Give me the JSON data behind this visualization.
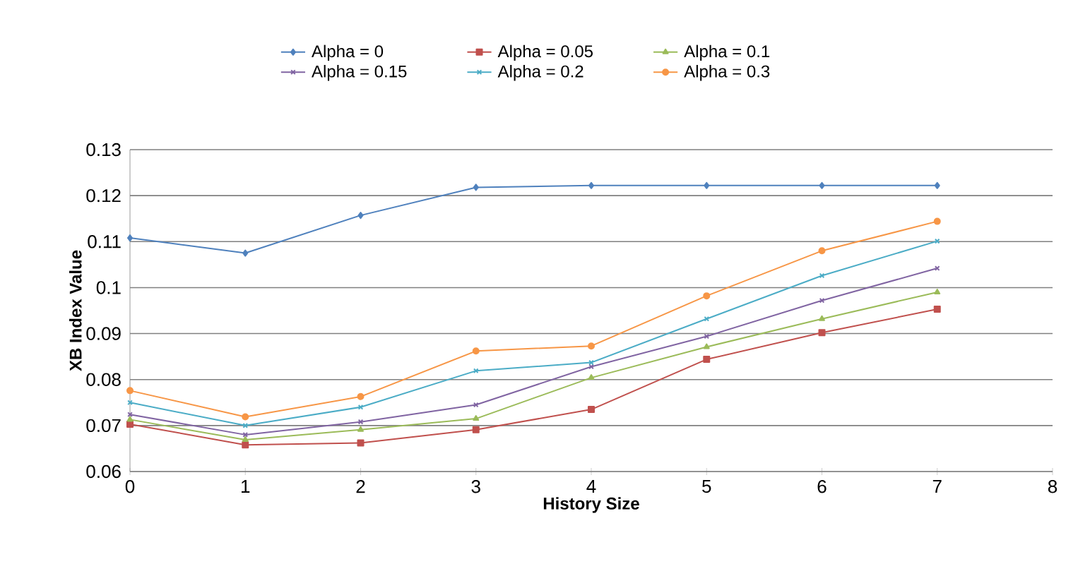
{
  "chart_data": {
    "type": "line",
    "xlabel": "History Size",
    "ylabel": "XB Index Value",
    "x": [
      0,
      1,
      2,
      3,
      4,
      5,
      6,
      7
    ],
    "xlim": [
      0,
      8
    ],
    "xticks": [
      0,
      1,
      2,
      3,
      4,
      5,
      6,
      7,
      8
    ],
    "ylim": [
      0.06,
      0.13
    ],
    "yticks": [
      0.06,
      0.07,
      0.08,
      0.09,
      0.1,
      0.11,
      0.12,
      0.13
    ],
    "grid": "y",
    "legend": "top",
    "line_style": "solid",
    "series": [
      {
        "name": "Alpha = 0",
        "color": "#4f81bd",
        "marker": "diamond",
        "values": [
          0.1108,
          0.1075,
          0.1157,
          0.1218,
          0.1222,
          0.1222,
          0.1222,
          0.1222
        ]
      },
      {
        "name": "Alpha = 0.05",
        "color": "#c0504d",
        "marker": "square",
        "values": [
          0.0703,
          0.0658,
          0.0662,
          0.0691,
          0.0735,
          0.0844,
          0.0902,
          0.0953
        ]
      },
      {
        "name": "Alpha = 0.1",
        "color": "#9bbb59",
        "marker": "triangle",
        "values": [
          0.0713,
          0.0669,
          0.0691,
          0.0715,
          0.0804,
          0.0871,
          0.0932,
          0.099
        ]
      },
      {
        "name": "Alpha = 0.15",
        "color": "#8064a2",
        "marker": "cross",
        "values": [
          0.0724,
          0.068,
          0.0708,
          0.0745,
          0.0828,
          0.0894,
          0.0972,
          0.1042
        ]
      },
      {
        "name": "Alpha = 0.2",
        "color": "#4bacc6",
        "marker": "cross",
        "values": [
          0.075,
          0.07,
          0.074,
          0.0819,
          0.0837,
          0.0932,
          0.1026,
          0.1101
        ]
      },
      {
        "name": "Alpha = 0.3",
        "color": "#f79646",
        "marker": "circle",
        "values": [
          0.0776,
          0.0719,
          0.0763,
          0.0862,
          0.0873,
          0.0982,
          0.108,
          0.1144
        ]
      }
    ]
  }
}
